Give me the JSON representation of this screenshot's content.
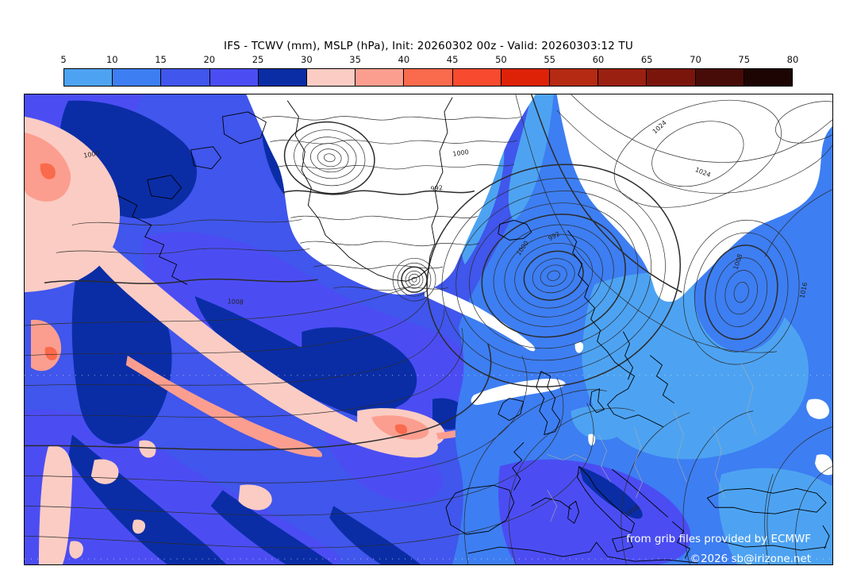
{
  "title": "IFS - TCWV (mm), MSLP (hPa), Init: 20260302 00z - Valid: 20260303:12 TU",
  "colorbar": {
    "ticks": [
      "5",
      "10",
      "15",
      "20",
      "25",
      "30",
      "35",
      "40",
      "45",
      "50",
      "55",
      "60",
      "65",
      "70",
      "75",
      "80"
    ],
    "cells": [
      {
        "range": "5-10",
        "color": "#4da3f2"
      },
      {
        "range": "10-15",
        "color": "#3d7ef2"
      },
      {
        "range": "15-20",
        "color": "#4056ec"
      },
      {
        "range": "20-25",
        "color": "#4b4df3"
      },
      {
        "range": "25-30",
        "color": "#0a2da6"
      },
      {
        "range": "30-35",
        "color": "#fbccc3"
      },
      {
        "range": "35-40",
        "color": "#fb9e8f"
      },
      {
        "range": "40-45",
        "color": "#fa6a4c"
      },
      {
        "range": "45-50",
        "color": "#f84a2e"
      },
      {
        "range": "50-55",
        "color": "#de2208"
      },
      {
        "range": "55-60",
        "color": "#b42a12"
      },
      {
        "range": "60-65",
        "color": "#9a2012"
      },
      {
        "range": "65-70",
        "color": "#7a150c"
      },
      {
        "range": "70-75",
        "color": "#470c07"
      },
      {
        "range": "75-80",
        "color": "#1d0503"
      }
    ]
  },
  "map": {
    "fill_classes": {
      "f0": "#ffffff",
      "f5": "#4da3f2",
      "f10": "#3d7ef2",
      "f15": "#4056ec",
      "f20": "#4b4df3",
      "f25": "#0a2da6",
      "f30": "#fbccc3",
      "f35": "#fb9e8f",
      "f40": "#fa6a4c"
    },
    "line_colors": {
      "isobar": "#2b2b2b",
      "coastline": "#000000",
      "border": "#ababab",
      "graticule": "#e9e9e9"
    },
    "contour_labels": [
      "1000",
      "992",
      "1000",
      "992",
      "1000",
      "1024",
      "1024",
      "1008",
      "1016",
      "1016",
      "1008"
    ],
    "attribution_line1": "from grib files provided by ECMWF",
    "attribution_line2": "©2026 sb@irizone.net"
  },
  "chart_data": {
    "type": "heatmap",
    "title": "IFS - TCWV (mm), MSLP (hPa), Init: 20260302 00z - Valid: 20260303:12 TU",
    "model": "IFS",
    "init": "20260302 00z",
    "valid": "20260303:12 TU",
    "fields": [
      {
        "name": "TCWV",
        "unit": "mm",
        "style": "filled color contours"
      },
      {
        "name": "MSLP",
        "unit": "hPa",
        "style": "black contour lines"
      }
    ],
    "legend": {
      "label": "TCWV (mm)",
      "values": [
        5,
        10,
        15,
        20,
        25,
        30,
        35,
        40,
        45,
        50,
        55,
        60,
        65,
        70,
        75,
        80
      ],
      "colors": [
        "#4da3f2",
        "#3d7ef2",
        "#4056ec",
        "#4b4df3",
        "#0a2da6",
        "#fbccc3",
        "#fb9e8f",
        "#fa6a4c",
        "#f84a2e",
        "#de2208",
        "#b42a12",
        "#9a2012",
        "#7a150c",
        "#470c07",
        "#1d0503"
      ],
      "position": "top"
    },
    "visible_isobar_values_hpa": [
      992,
      1000,
      1008,
      1016,
      1024
    ],
    "pressure_centers": [
      {
        "type": "low",
        "location": "Norwegian Sea, between Iceland and Norway"
      },
      {
        "type": "low",
        "location": "south of Greenland tip"
      },
      {
        "type": "low",
        "location": "northwest Russia"
      },
      {
        "type": "low",
        "location": "Canadian Arctic"
      },
      {
        "type": "high",
        "location": "Arctic Russia / Svalbard region, 1024 hPa contours"
      }
    ],
    "moisture_features": [
      {
        "name": "atmospheric-river band 30-45 mm",
        "location": "diagonal across western Atlantic from NW to central map"
      },
      {
        "name": "dry region < 5 mm",
        "location": "Greenland / Arctic Canada and NW Russia"
      }
    ],
    "data_source": "ECMWF"
  }
}
